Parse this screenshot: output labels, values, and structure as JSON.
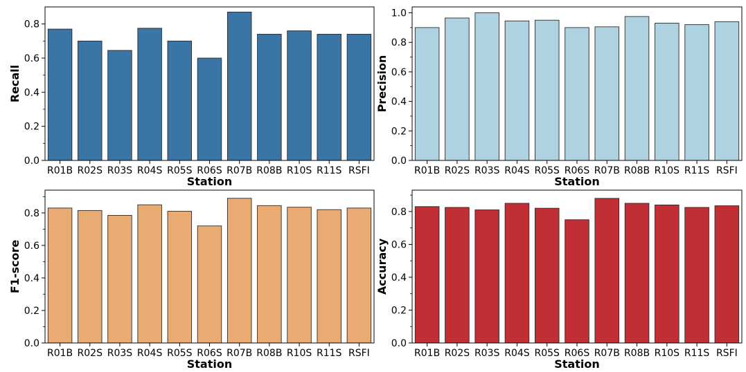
{
  "chart_data": [
    {
      "type": "bar",
      "xlabel": "Station",
      "ylabel": "Recall",
      "categories": [
        "R01B",
        "R02S",
        "R03S",
        "R04S",
        "R05S",
        "R06S",
        "R07B",
        "R08B",
        "R10S",
        "R11S",
        "RSFI"
      ],
      "values": [
        0.77,
        0.7,
        0.645,
        0.775,
        0.7,
        0.6,
        0.87,
        0.74,
        0.76,
        0.74,
        0.74
      ],
      "ylim": [
        0,
        0.9
      ],
      "yticks": [
        "0.0",
        "0.2",
        "0.4",
        "0.6",
        "0.8"
      ],
      "color": "#3b75a6",
      "grid": false
    },
    {
      "type": "bar",
      "xlabel": "Station",
      "ylabel": "Precision",
      "categories": [
        "R01B",
        "R02S",
        "R03S",
        "R04S",
        "R05S",
        "R06S",
        "R07B",
        "R08B",
        "R10S",
        "R11S",
        "RSFI"
      ],
      "values": [
        0.9,
        0.965,
        1.0,
        0.945,
        0.95,
        0.9,
        0.905,
        0.975,
        0.93,
        0.92,
        0.94
      ],
      "ylim": [
        0,
        1.04
      ],
      "yticks": [
        "0.0",
        "0.2",
        "0.4",
        "0.6",
        "0.8",
        "1.0"
      ],
      "color": "#aed2df",
      "grid": false
    },
    {
      "type": "bar",
      "xlabel": "Station",
      "ylabel": "F1-score",
      "categories": [
        "R01B",
        "R02S",
        "R03S",
        "R04S",
        "R05S",
        "R06S",
        "R07B",
        "R08B",
        "R10S",
        "R11S",
        "RSFI"
      ],
      "values": [
        0.83,
        0.815,
        0.785,
        0.85,
        0.81,
        0.72,
        0.89,
        0.845,
        0.835,
        0.82,
        0.83
      ],
      "ylim": [
        0,
        0.94
      ],
      "yticks": [
        "0.0",
        "0.2",
        "0.4",
        "0.6",
        "0.8"
      ],
      "color": "#eaab72",
      "grid": false
    },
    {
      "type": "bar",
      "xlabel": "Station",
      "ylabel": "Accuracy",
      "categories": [
        "R01B",
        "R02S",
        "R03S",
        "R04S",
        "R05S",
        "R06S",
        "R07B",
        "R08B",
        "R10S",
        "R11S",
        "RSFI"
      ],
      "values": [
        0.83,
        0.825,
        0.81,
        0.85,
        0.82,
        0.75,
        0.88,
        0.85,
        0.84,
        0.825,
        0.835
      ],
      "ylim": [
        0,
        0.93
      ],
      "yticks": [
        "0.0",
        "0.2",
        "0.4",
        "0.6",
        "0.8"
      ],
      "color": "#c12f35",
      "grid": false
    }
  ]
}
